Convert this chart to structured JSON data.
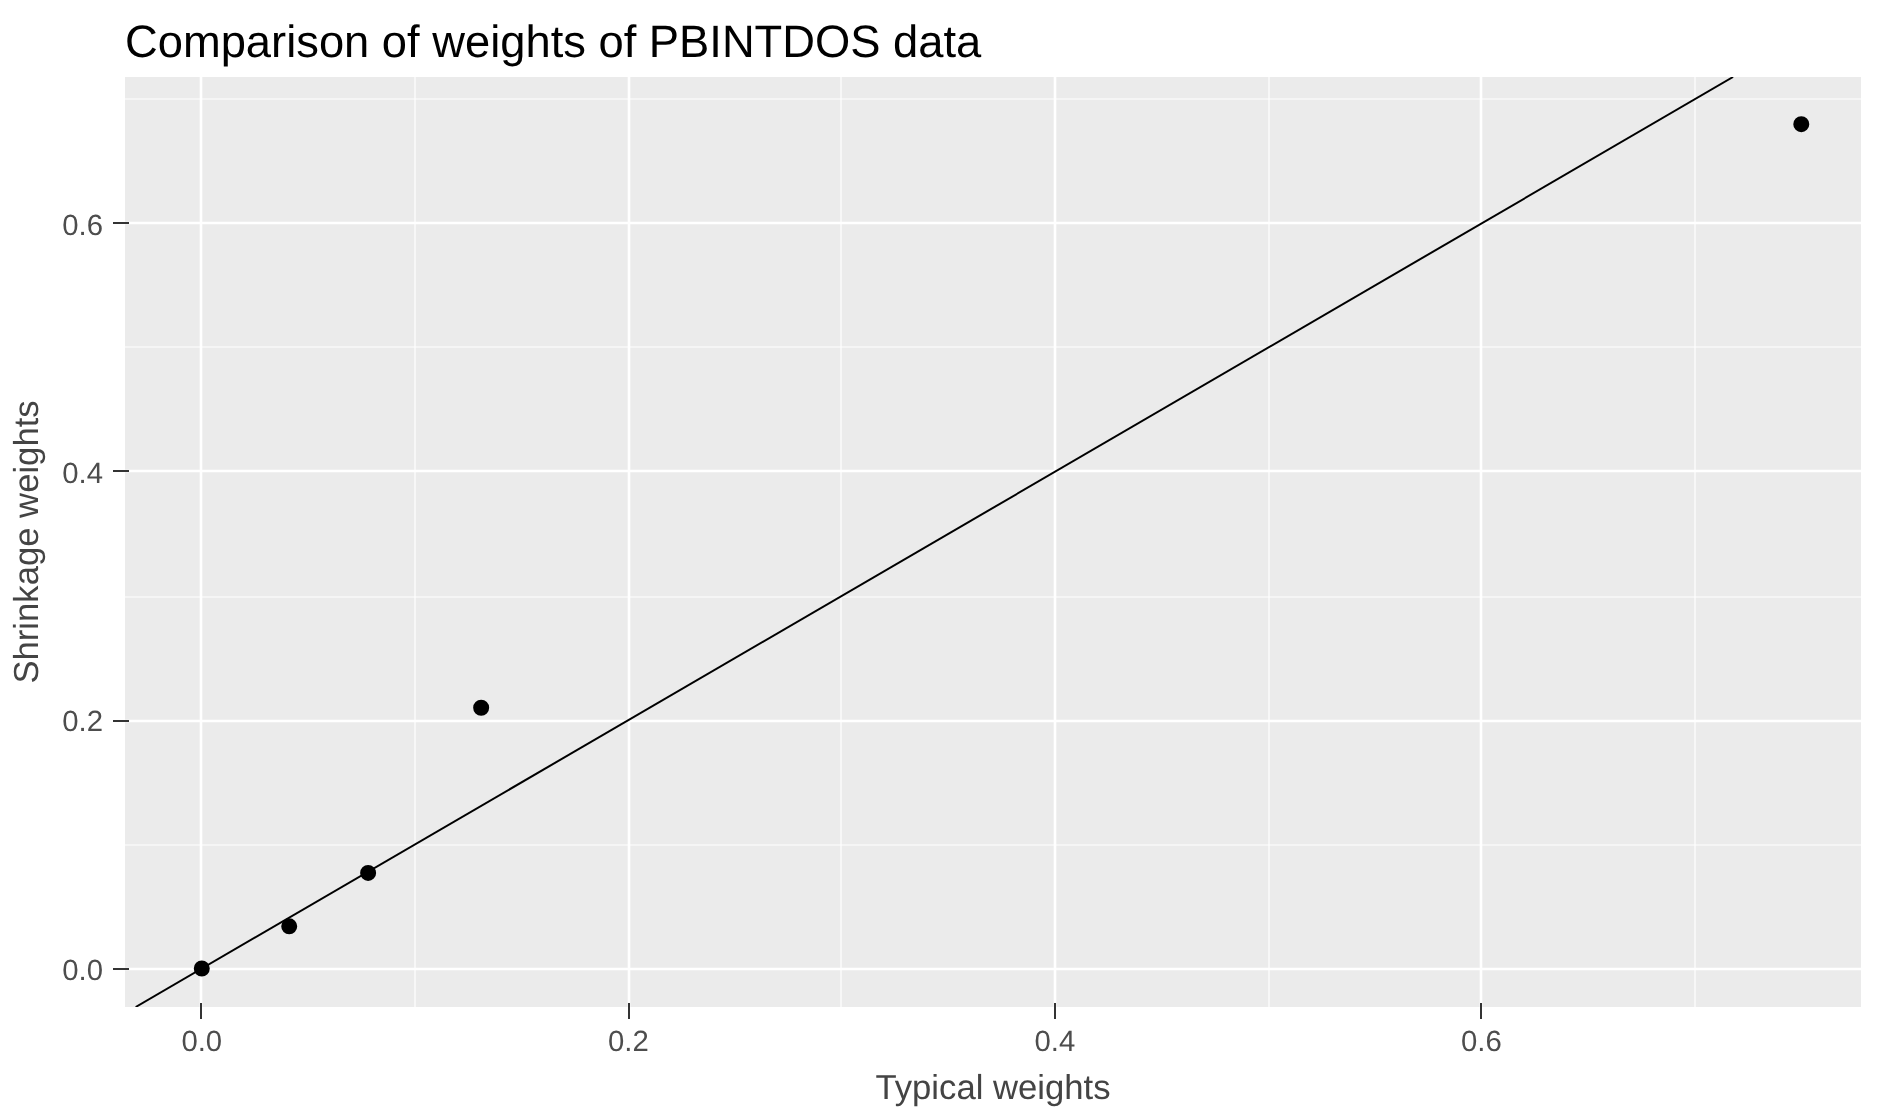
{
  "chart_data": {
    "type": "scatter",
    "title": "Comparison of weights of PBINTDOS data",
    "xlabel": "Typical weights",
    "ylabel": "Shrinkage weights",
    "xlim": [
      -0.036,
      0.778
    ],
    "ylim": [
      -0.031,
      0.718
    ],
    "xticks": [
      {
        "value": 0,
        "label": "0.0"
      },
      {
        "value": 0.2,
        "label": "0.2"
      },
      {
        "value": 0.4,
        "label": "0.4"
      },
      {
        "value": 0.6,
        "label": "0.6"
      }
    ],
    "yticks": [
      {
        "value": 0,
        "label": "0.0"
      },
      {
        "value": 0.2,
        "label": "0.2"
      },
      {
        "value": 0.4,
        "label": "0.4"
      },
      {
        "value": 0.6,
        "label": "0.6"
      }
    ],
    "grid": true,
    "series": [
      {
        "marker": "circle",
        "color": "#000000",
        "x": [
          0,
          0.041,
          0.078,
          0.131,
          0.75
        ],
        "values": [
          0,
          0.034,
          0.077,
          0.21,
          0.68
        ]
      },
      {
        "type": "line",
        "color": "#000000",
        "x": [
          -0.031,
          0.718
        ],
        "values": [
          -0.031,
          0.718
        ]
      }
    ]
  }
}
